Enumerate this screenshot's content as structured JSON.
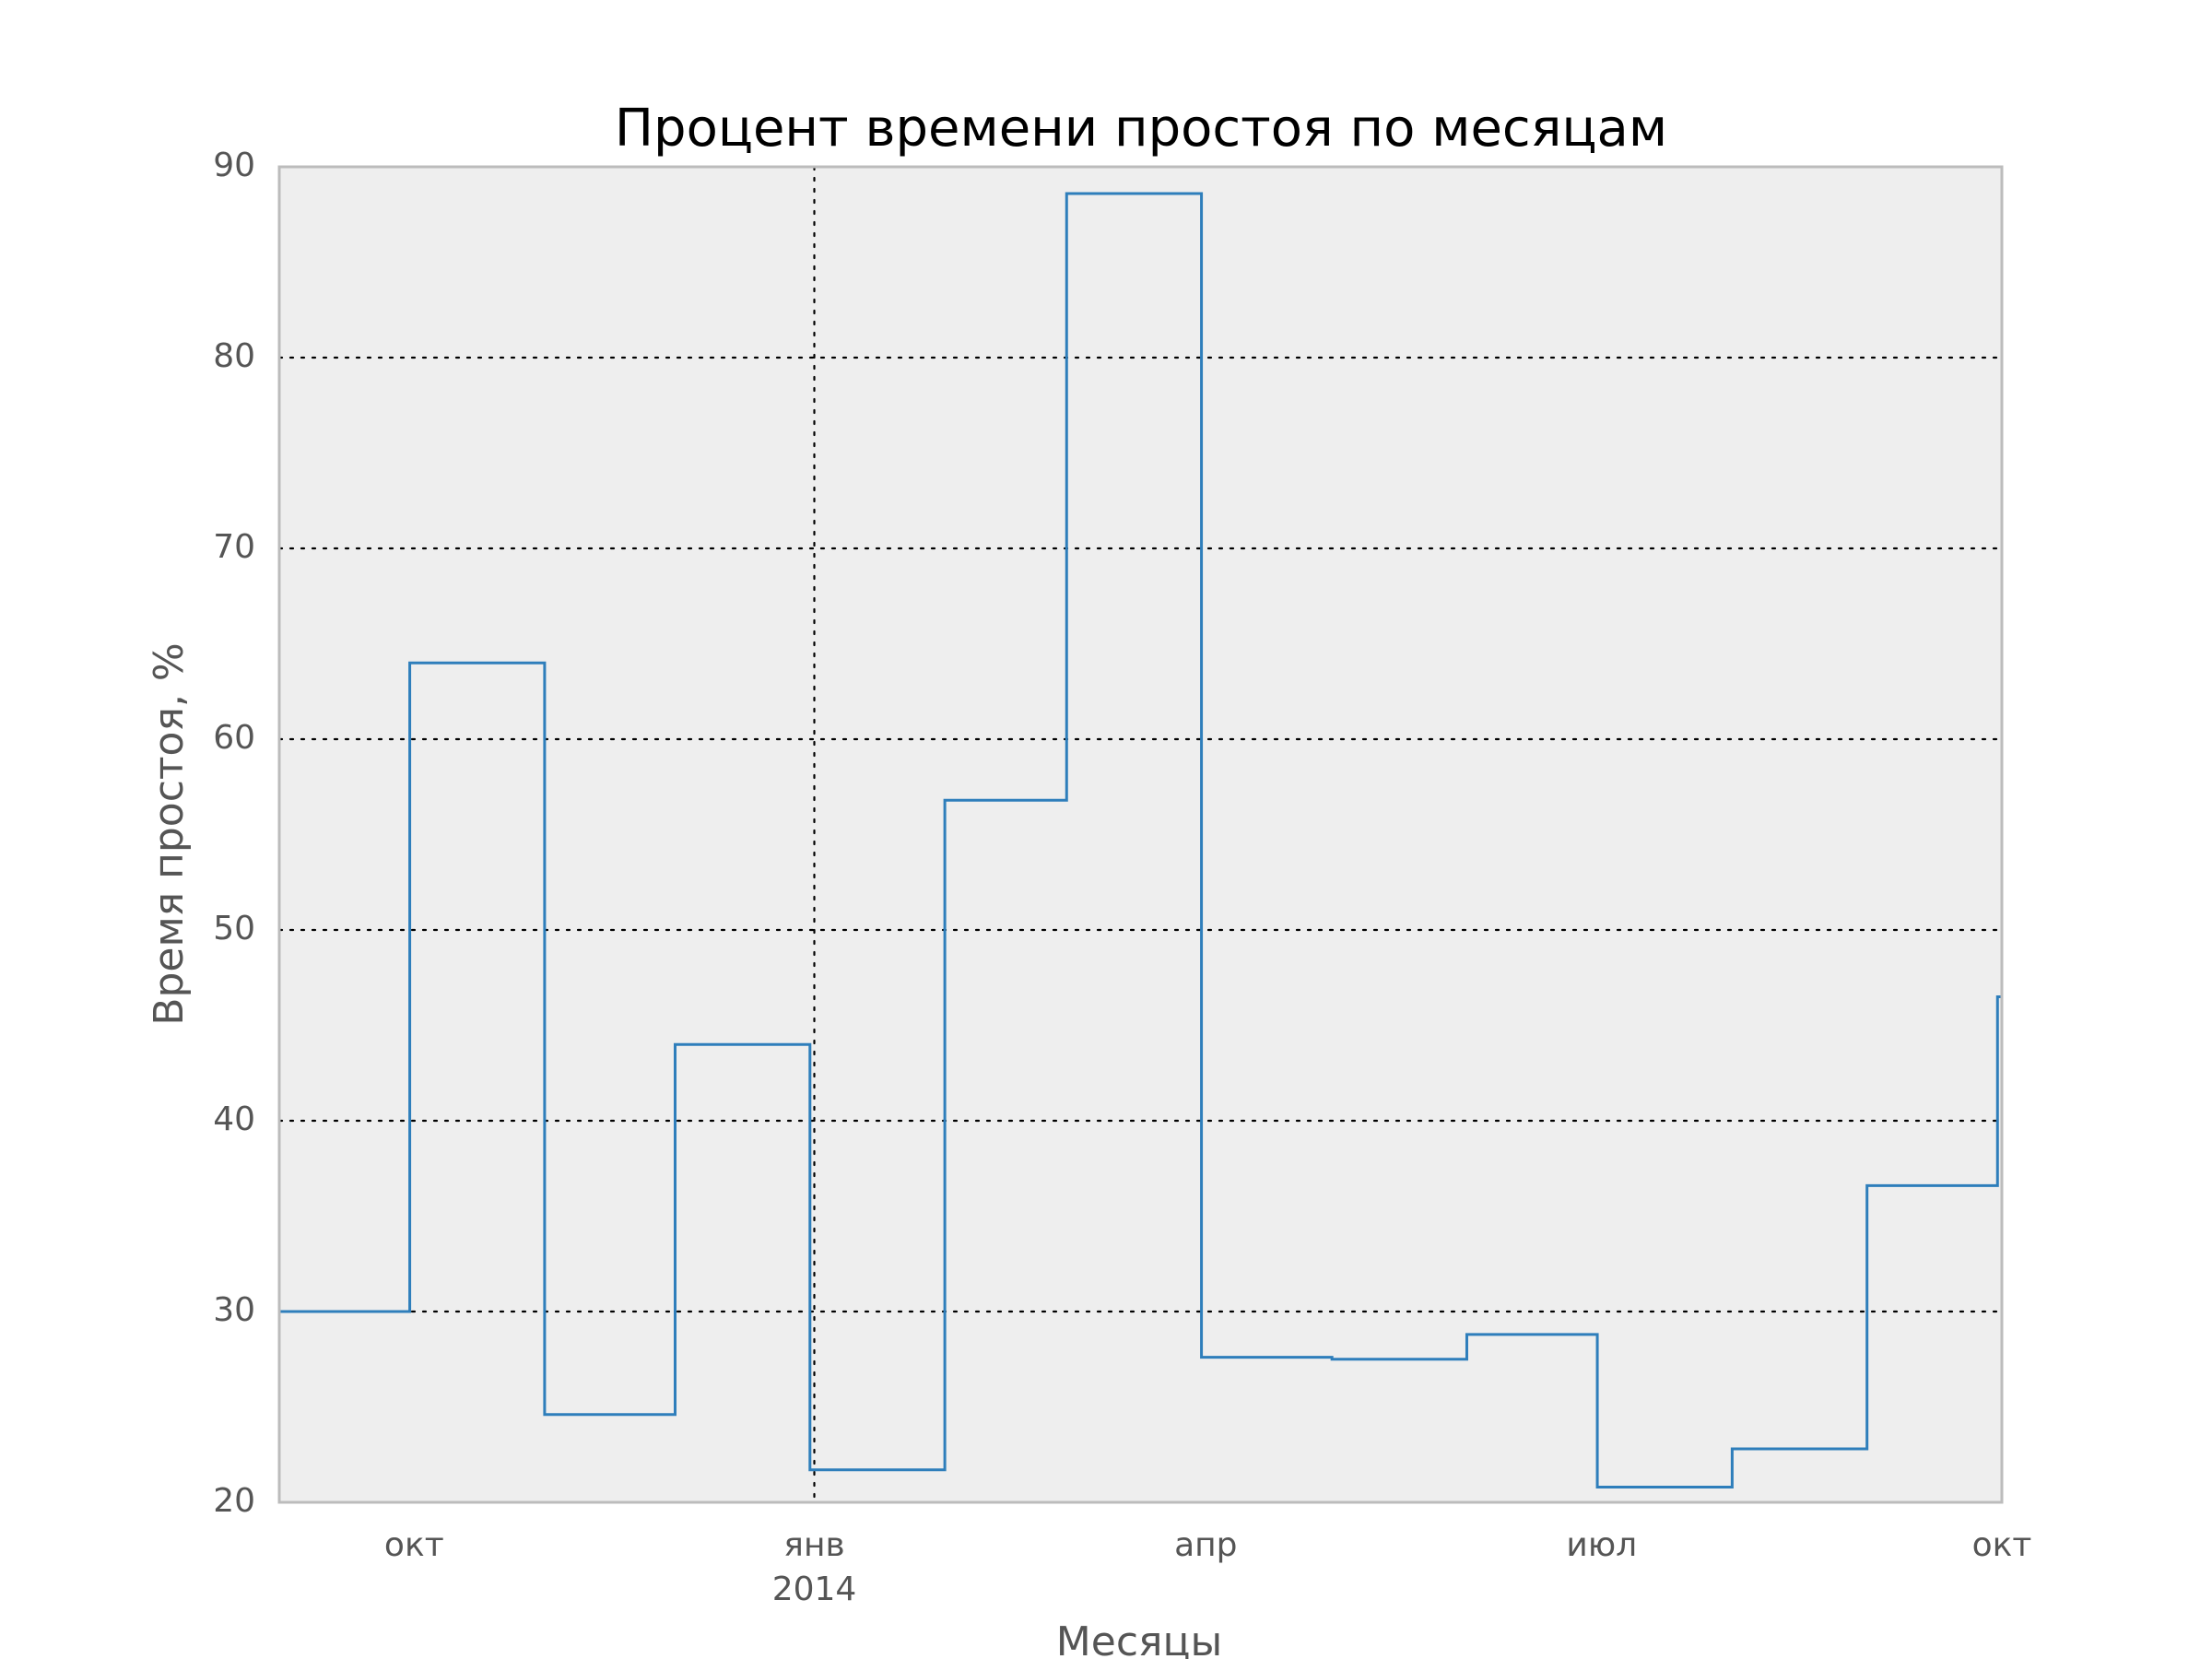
{
  "chart_data": {
    "type": "line",
    "drawstyle": "steps-post",
    "title": "Процент времени простоя по месяцам",
    "xlabel": "Месяцы",
    "ylabel": "Время простоя, %",
    "ylim": [
      20,
      90
    ],
    "xlim": [
      "2013-08-31",
      "2014-10-01"
    ],
    "x": [
      "2013-08-31",
      "2013-09-30",
      "2013-10-31",
      "2013-11-30",
      "2013-12-31",
      "2014-01-31",
      "2014-02-28",
      "2014-03-31",
      "2014-04-30",
      "2014-05-31",
      "2014-06-30",
      "2014-07-31",
      "2014-08-31",
      "2014-09-30"
    ],
    "series": [
      {
        "values": [
          30.0,
          64.0,
          24.6,
          44.0,
          21.7,
          56.8,
          88.6,
          27.6,
          27.5,
          28.8,
          20.8,
          22.8,
          36.6,
          46.5
        ]
      }
    ],
    "yticks": [
      20,
      30,
      40,
      50,
      60,
      70,
      80,
      90
    ],
    "xticks": [
      {
        "date": "2013-10-01",
        "label": "окт",
        "sublabel": ""
      },
      {
        "date": "2014-01-01",
        "label": "янв",
        "sublabel": "2014"
      },
      {
        "date": "2014-04-01",
        "label": "апр",
        "sublabel": ""
      },
      {
        "date": "2014-07-01",
        "label": "июл",
        "sublabel": ""
      },
      {
        "date": "2014-10-01",
        "label": "окт",
        "sublabel": ""
      }
    ],
    "grid": true,
    "legend": "none",
    "colors": {
      "line": "#2E7EBB",
      "plot_background": "#EEEEEE",
      "frame": "#BCBCBC",
      "grid": "#000000"
    }
  }
}
